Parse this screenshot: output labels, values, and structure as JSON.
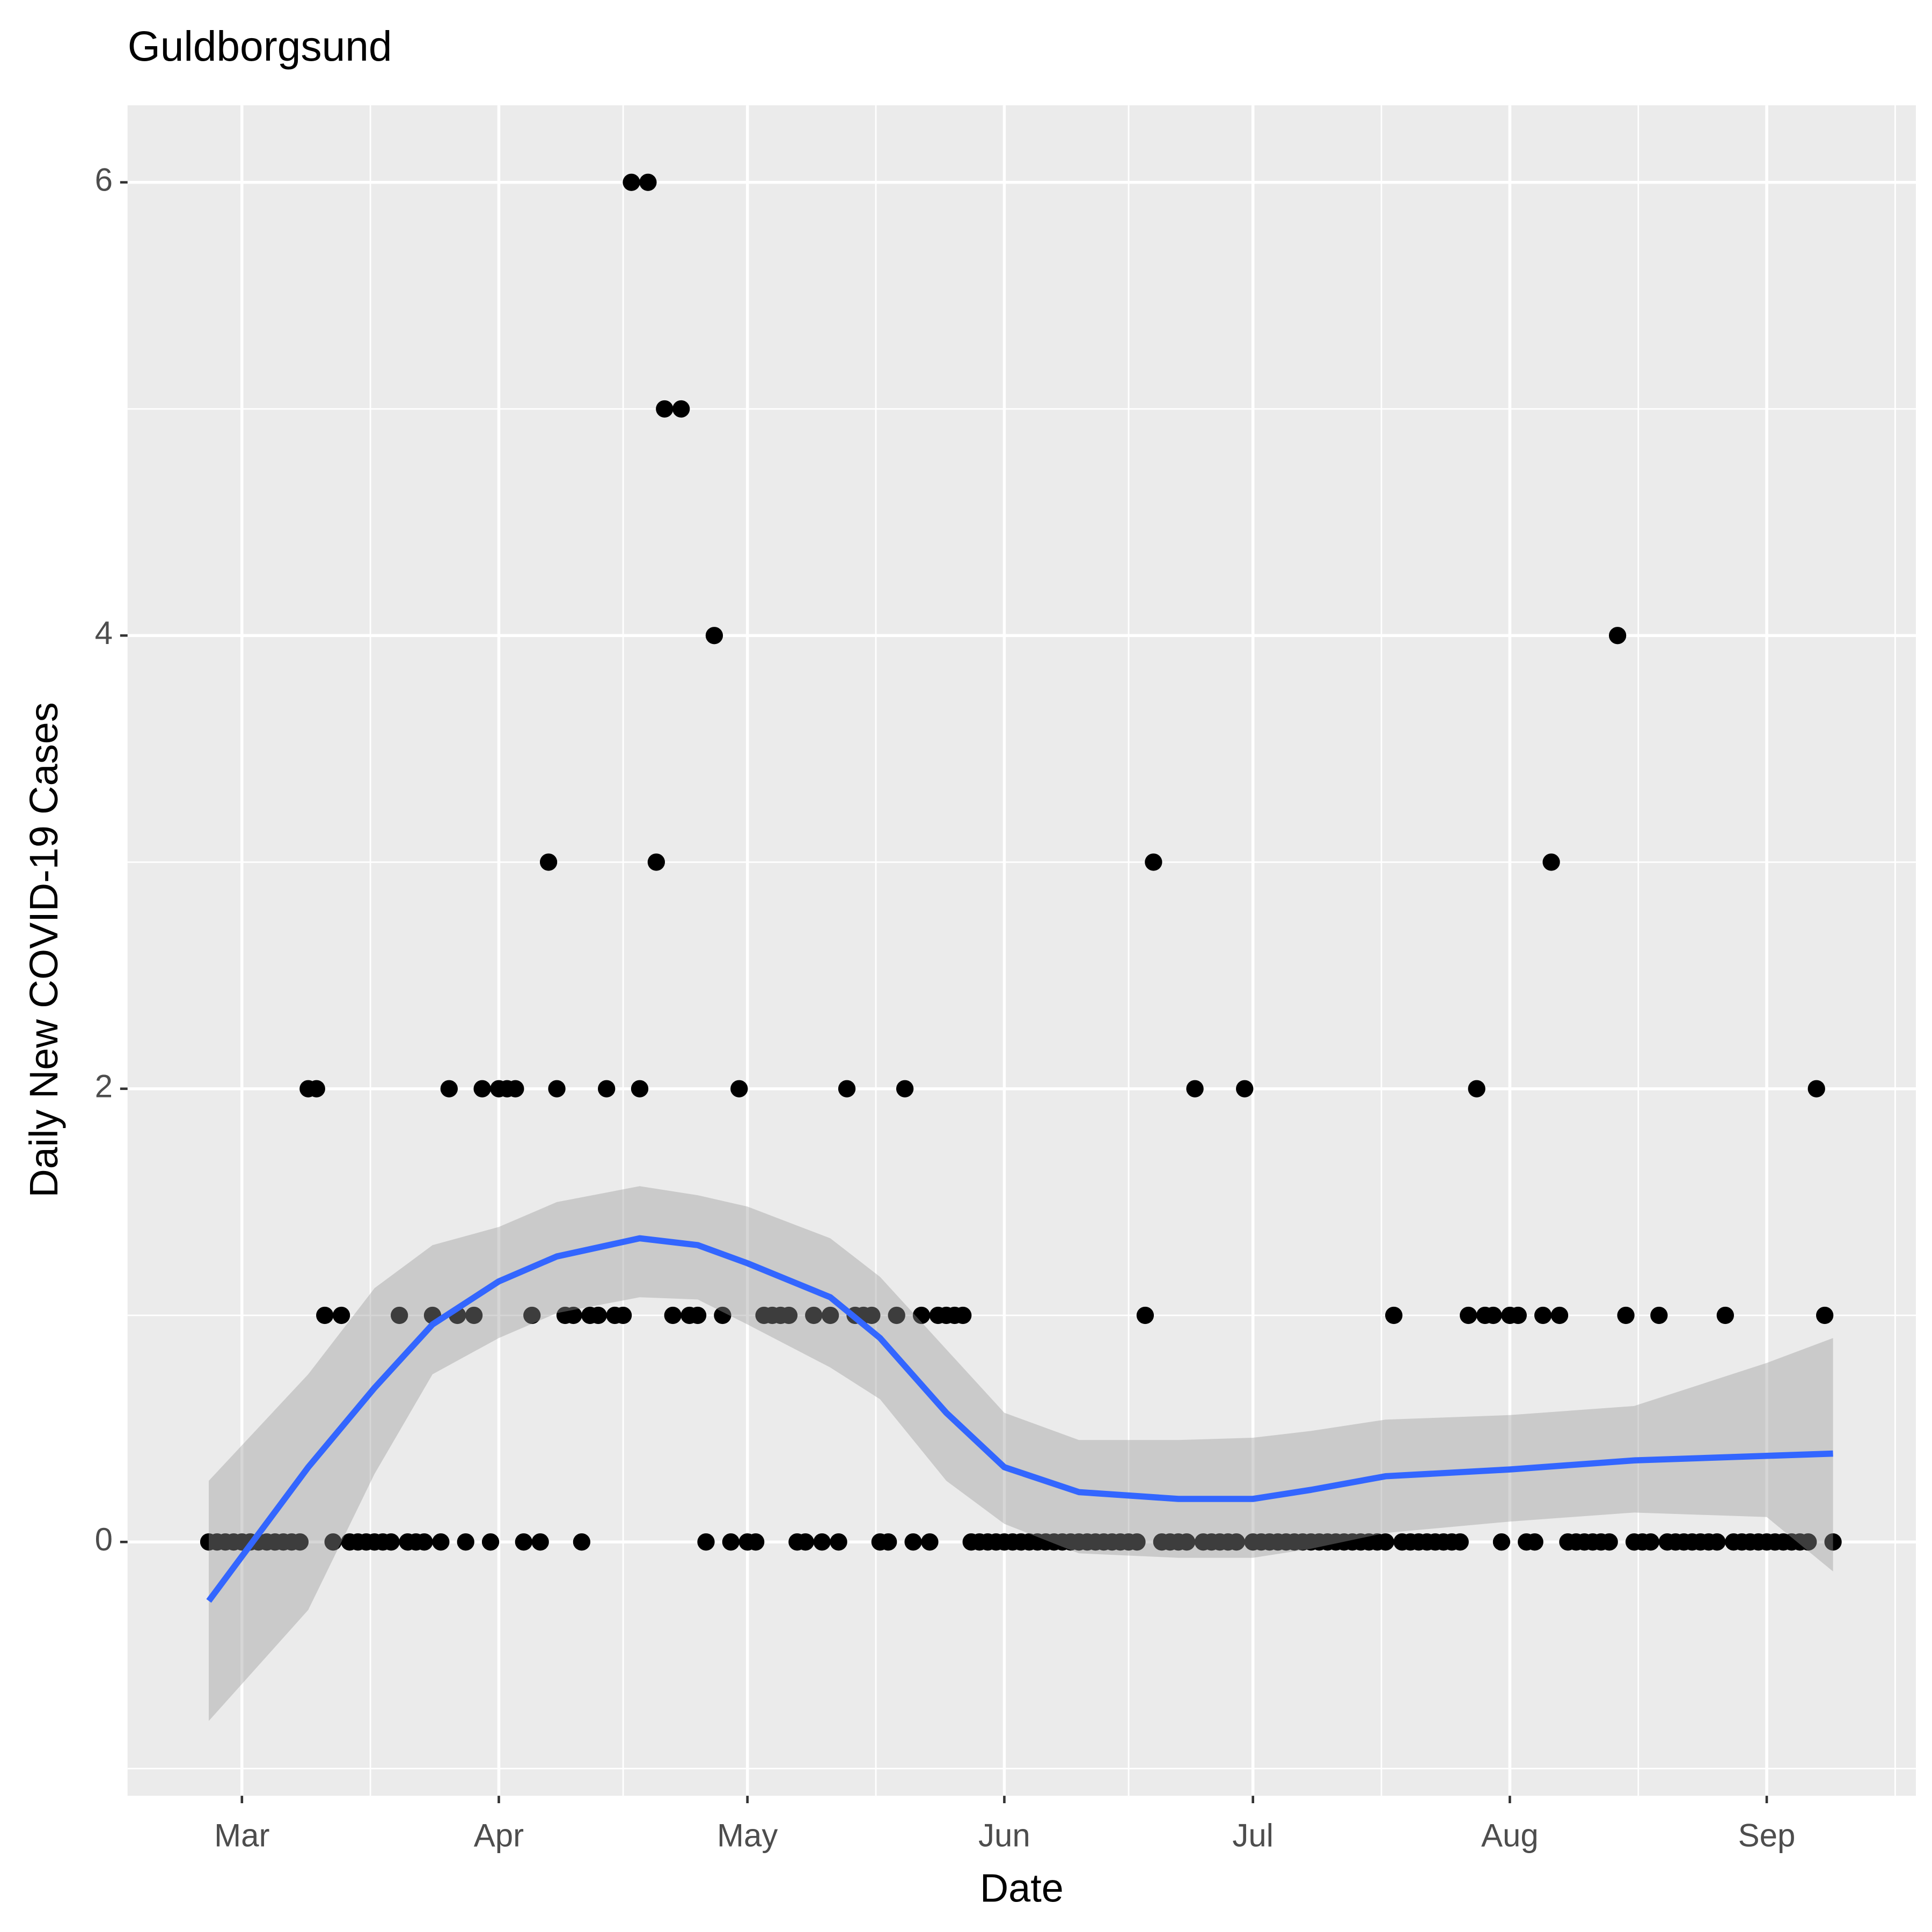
{
  "chart_data": {
    "type": "scatter",
    "title": "Guldborgsund",
    "x_label": "Date",
    "y_label": "Daily New COVID-19 Cases",
    "x": [
      56,
      57,
      58,
      59,
      60,
      61,
      62,
      63,
      64,
      65,
      66,
      67,
      68,
      69,
      70,
      71,
      72,
      73,
      74,
      75,
      76,
      77,
      78,
      79,
      80,
      81,
      82,
      83,
      84,
      85,
      86,
      87,
      88,
      89,
      90,
      91,
      92,
      93,
      94,
      95,
      96,
      97,
      98,
      99,
      100,
      101,
      102,
      103,
      104,
      105,
      106,
      107,
      108,
      109,
      110,
      111,
      112,
      113,
      114,
      115,
      116,
      117,
      118,
      119,
      120,
      121,
      122,
      123,
      124,
      125,
      126,
      127,
      128,
      129,
      130,
      131,
      132,
      133,
      134,
      135,
      136,
      137,
      138,
      139,
      140,
      141,
      142,
      143,
      144,
      145,
      146,
      147,
      148,
      149,
      150,
      151,
      152,
      153,
      154,
      155,
      156,
      157,
      158,
      159,
      160,
      161,
      162,
      163,
      164,
      165,
      166,
      167,
      168,
      169,
      170,
      171,
      172,
      173,
      174,
      175,
      176,
      177,
      178,
      179,
      180,
      181,
      182,
      183,
      184,
      185,
      186,
      187,
      188,
      189,
      190,
      191,
      192,
      193,
      194,
      195,
      196,
      197,
      198,
      199,
      200,
      201,
      202,
      203,
      204,
      205,
      206,
      207,
      208,
      209,
      210,
      211,
      212,
      213,
      214,
      215,
      216,
      217,
      218,
      219,
      220,
      221,
      222,
      223,
      224,
      225,
      226,
      227,
      228,
      229,
      230,
      231,
      232,
      233,
      234,
      235,
      236,
      237,
      238,
      239,
      240,
      241,
      242,
      243,
      244,
      245,
      246,
      247,
      248,
      249,
      250,
      251,
      252
    ],
    "values": [
      0,
      0,
      0,
      0,
      0,
      0,
      0,
      0,
      0,
      0,
      0,
      0,
      2,
      2,
      1,
      0,
      1,
      0,
      0,
      0,
      0,
      0,
      0,
      1,
      0,
      0,
      0,
      1,
      0,
      2,
      1,
      0,
      1,
      2,
      0,
      2,
      2,
      2,
      0,
      1,
      0,
      3,
      2,
      1,
      1,
      0,
      1,
      1,
      2,
      1,
      1,
      6,
      2,
      6,
      3,
      5,
      1,
      5,
      1,
      1,
      0,
      4,
      1,
      0,
      2,
      0,
      0,
      1,
      1,
      1,
      1,
      0,
      0,
      1,
      0,
      1,
      0,
      2,
      1,
      1,
      1,
      0,
      0,
      1,
      2,
      0,
      1,
      0,
      1,
      1,
      1,
      1,
      0,
      0,
      0,
      0,
      0,
      0,
      0,
      0,
      0,
      0,
      0,
      0,
      0,
      0,
      0,
      0,
      0,
      0,
      0,
      0,
      0,
      1,
      3,
      0,
      0,
      0,
      0,
      2,
      0,
      0,
      0,
      0,
      0,
      2,
      0,
      0,
      0,
      0,
      0,
      0,
      0,
      0,
      0,
      0,
      0,
      0,
      0,
      0,
      0,
      0,
      0,
      1,
      0,
      0,
      0,
      0,
      0,
      0,
      0,
      0,
      1,
      2,
      1,
      1,
      0,
      1,
      1,
      0,
      0,
      1,
      3,
      1,
      0,
      0,
      0,
      0,
      0,
      0,
      4,
      1,
      0,
      0,
      0,
      1,
      0,
      0,
      0,
      0,
      0,
      0,
      0,
      1,
      0,
      0,
      0,
      0,
      0,
      0,
      0,
      0,
      0,
      0,
      2,
      1,
      0
    ],
    "color": "#000000",
    "smooth": {
      "x": [
        56,
        68,
        76,
        83,
        91,
        98,
        108,
        115,
        121,
        131,
        137,
        145,
        152,
        161,
        173,
        182,
        189,
        198,
        213,
        228,
        244,
        252
      ],
      "values": [
        -0.26,
        0.33,
        0.68,
        0.96,
        1.15,
        1.26,
        1.34,
        1.31,
        1.23,
        1.08,
        0.9,
        0.57,
        0.33,
        0.22,
        0.19,
        0.19,
        0.23,
        0.29,
        0.32,
        0.36,
        0.38,
        0.39
      ],
      "lower": [
        -0.79,
        -0.3,
        0.3,
        0.74,
        0.9,
        1.01,
        1.08,
        1.07,
        0.96,
        0.77,
        0.63,
        0.27,
        0.08,
        -0.05,
        -0.07,
        -0.07,
        -0.03,
        0.04,
        0.09,
        0.13,
        0.11,
        -0.13
      ],
      "upper": [
        0.27,
        0.74,
        1.12,
        1.31,
        1.39,
        1.5,
        1.57,
        1.53,
        1.48,
        1.34,
        1.17,
        0.85,
        0.57,
        0.45,
        0.45,
        0.46,
        0.49,
        0.54,
        0.56,
        0.6,
        0.79,
        0.9
      ],
      "color": "#3366ff",
      "band_color": "#999999"
    },
    "xlim": [
      46.2,
      262
    ],
    "ylim": [
      -1.12,
      6.34
    ],
    "xticks": [
      {
        "value": 60,
        "label": "Mar"
      },
      {
        "value": 91,
        "label": "Apr"
      },
      {
        "value": 121,
        "label": "May"
      },
      {
        "value": 152,
        "label": "Jun"
      },
      {
        "value": 182,
        "label": "Jul"
      },
      {
        "value": 213,
        "label": "Aug"
      },
      {
        "value": 244,
        "label": "Sep"
      }
    ],
    "yticks": [
      0,
      2,
      4,
      6
    ],
    "grid": true
  }
}
